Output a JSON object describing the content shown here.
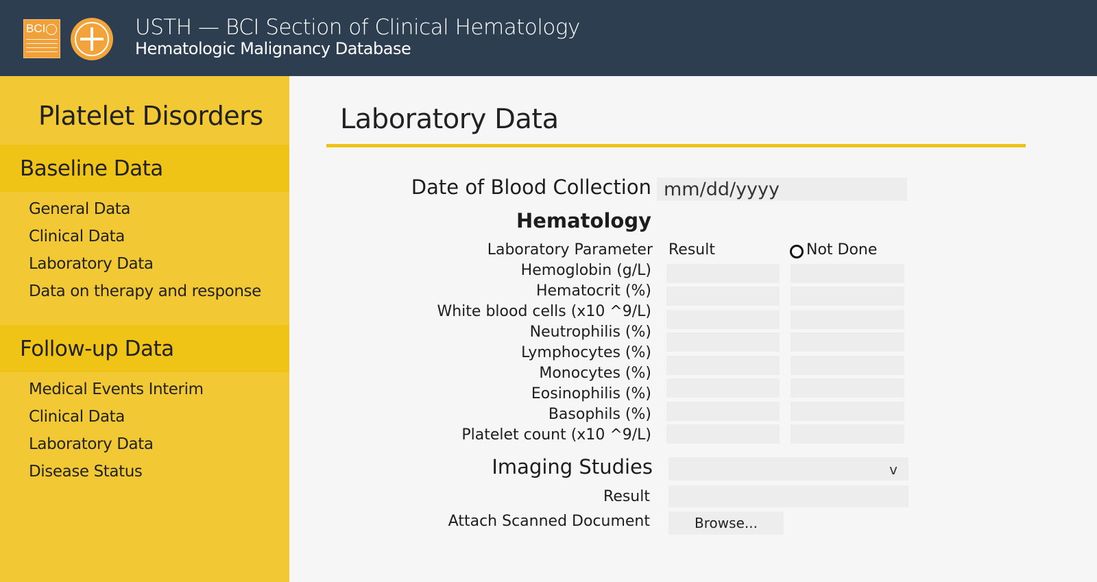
{
  "header": {
    "title": "USTH — BCI Section of Clinical Hematology",
    "subtitle": "Hematologic Malignancy Database",
    "logo_text": "BCI"
  },
  "sidebar": {
    "title": "Platelet Disorders",
    "sections": [
      {
        "label": "Baseline Data",
        "items": [
          "General Data",
          "Clinical Data",
          "Laboratory Data",
          "Data on therapy and response"
        ]
      },
      {
        "label": "Follow-up Data",
        "items": [
          "Medical Events Interim",
          "Clinical Data",
          "Laboratory Data",
          "Disease Status"
        ]
      }
    ]
  },
  "main": {
    "title": "Laboratory Data",
    "date_label": "Date of Blood Collection",
    "date_placeholder": "mm/dd/yyyy",
    "hematology_heading": "Hematology",
    "col_parameter": "Laboratory Parameter",
    "col_result": "Result",
    "col_not_done": "Not Done",
    "parameters": [
      "Hemoglobin (g/L)",
      "Hematocrit (%)",
      "White blood cells (x10 ^9/L)",
      "Neutrophilis (%)",
      "Lymphocytes (%)",
      "Monocytes (%)",
      "Eosinophilis (%)",
      "Basophils (%)",
      "Platelet count (x10 ^9/L)"
    ],
    "imaging_label": "Imaging Studies",
    "imaging_chevron": "v",
    "result_label": "Result",
    "attach_label": "Attach Scanned Document",
    "browse_label": "Browse..."
  },
  "colors": {
    "header_bg": "#2c3e50",
    "sidebar_bg": "#f2c934",
    "section_band": "#f0c417",
    "accent_rule": "#efc21a"
  }
}
